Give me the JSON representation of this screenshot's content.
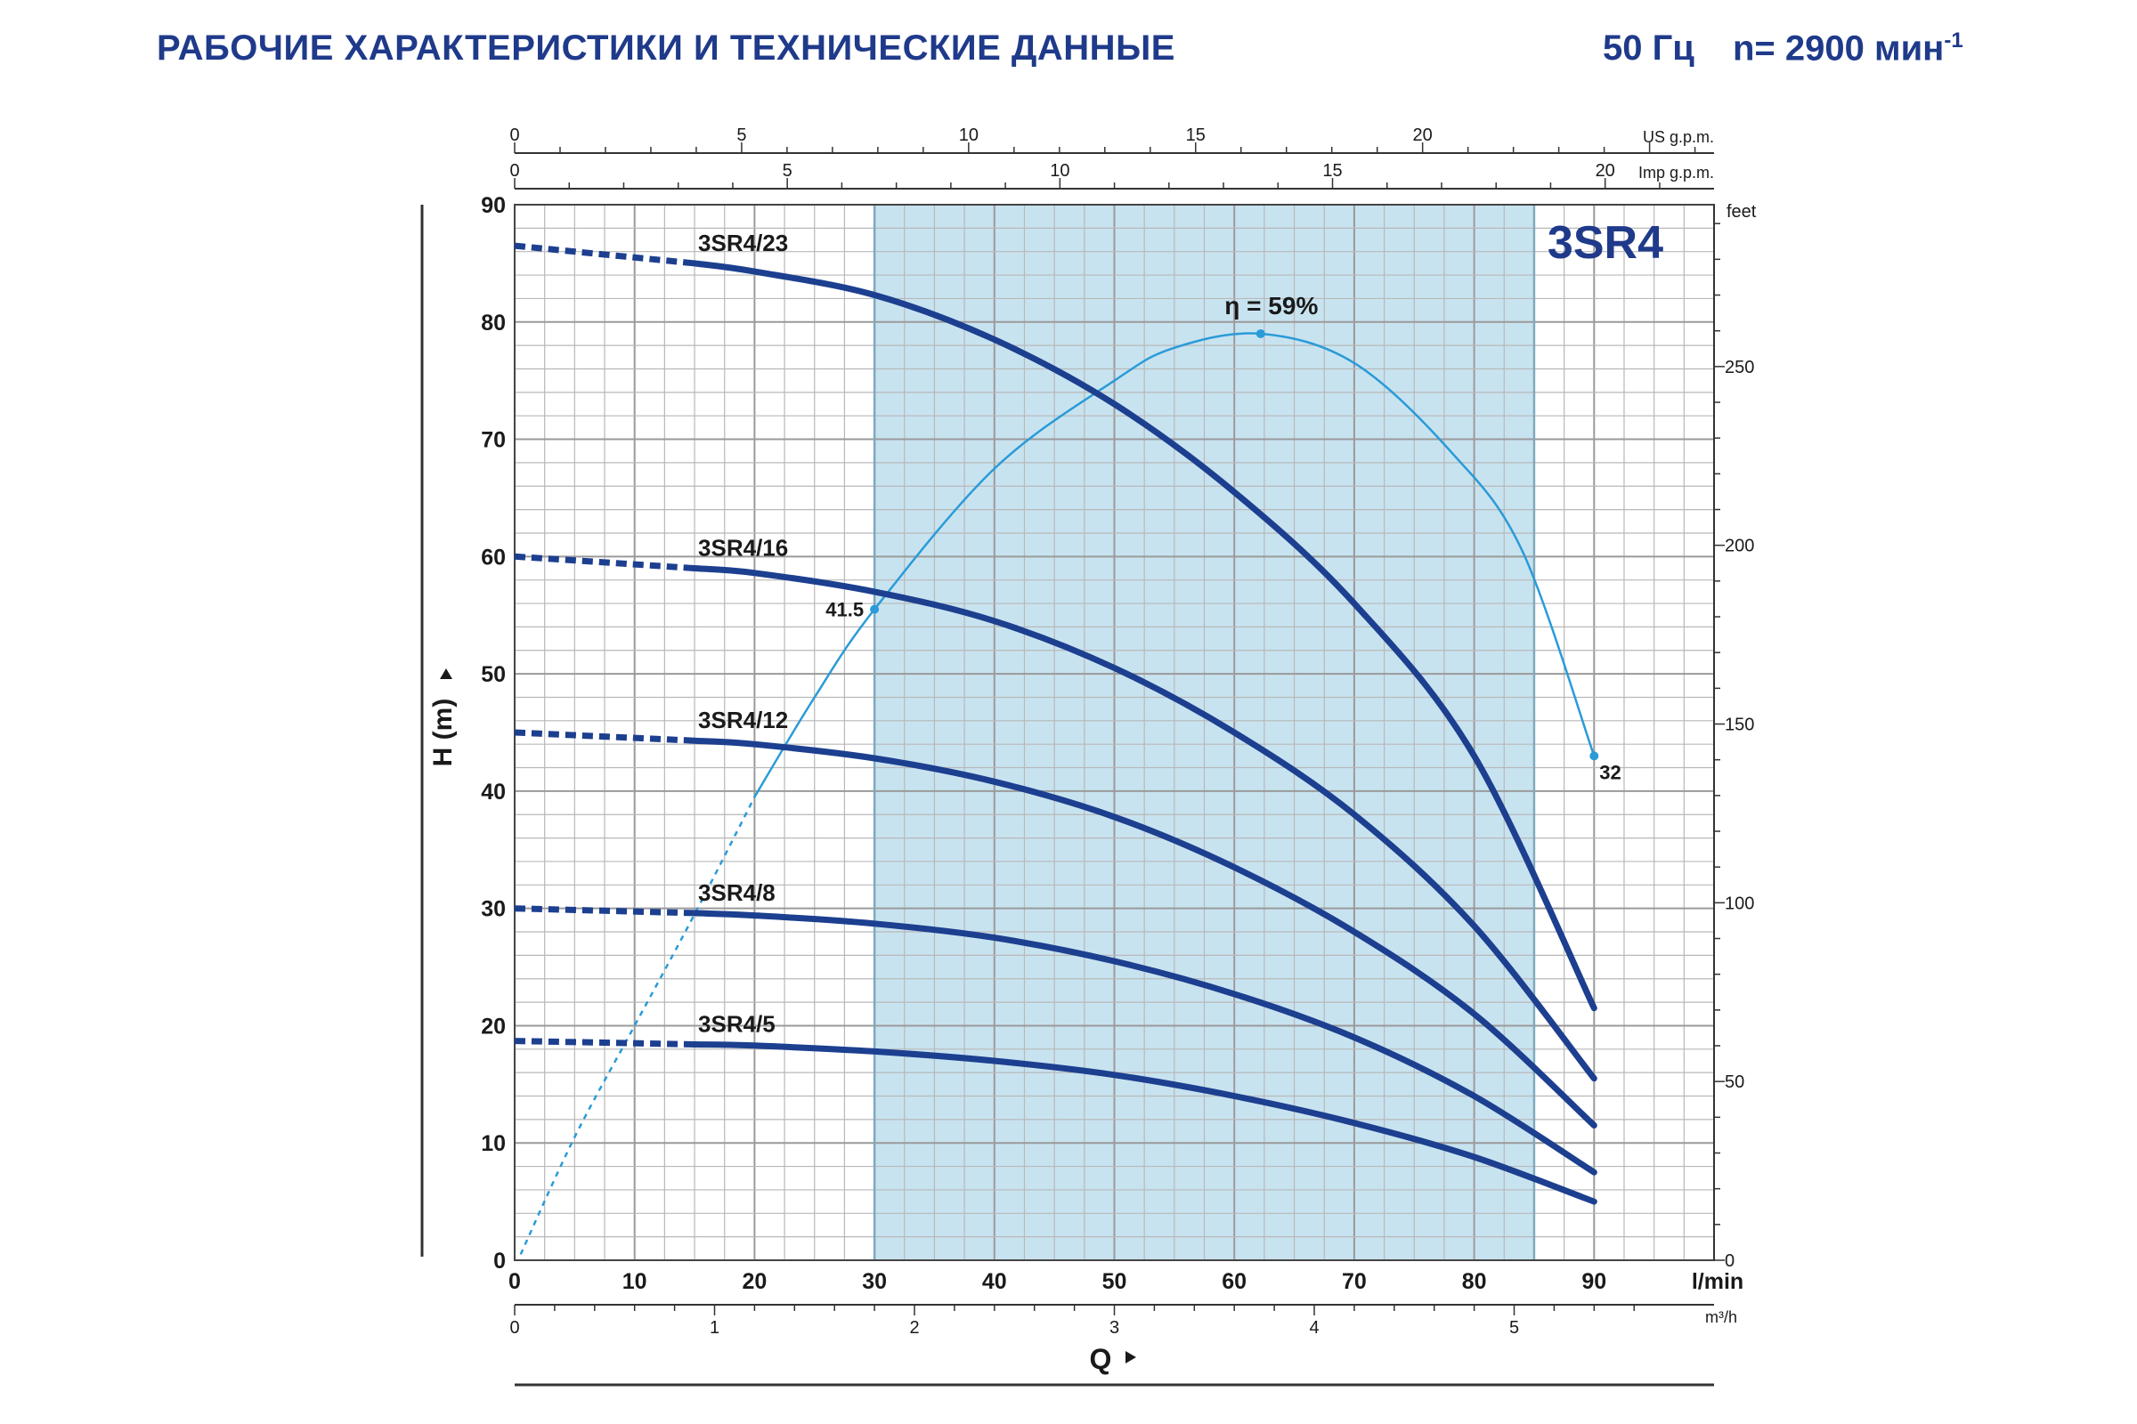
{
  "header": {
    "title": "РАБОЧИЕ ХАРАКТЕРИСТИКИ И ТЕХНИЧЕСКИЕ ДАННЫЕ",
    "frequency": "50 Гц",
    "speed": "n= 2900 мин",
    "speed_exp": "-1"
  },
  "colors": {
    "curve": "#1c3f8f",
    "efficiency": "#2a9bd8",
    "band": "#c8e3f0",
    "grid": "#b8b8b8",
    "brand": "#1f3a8a"
  },
  "chart_data": {
    "type": "line",
    "model": "3SR4",
    "xlabel": "Q",
    "ylabel": "H  (m)",
    "x_unit": "l/min",
    "xlim": [
      0,
      100
    ],
    "ylim": [
      0,
      90
    ],
    "x_ticks": [
      0,
      10,
      20,
      30,
      40,
      50,
      60,
      70,
      80,
      90
    ],
    "y_ticks": [
      0,
      10,
      20,
      30,
      40,
      50,
      60,
      70,
      80,
      90
    ],
    "top_axes": [
      {
        "unit": "US g.p.m.",
        "ticks": [
          0,
          5,
          10,
          15,
          20
        ],
        "lpm_per_unit": 3.785
      },
      {
        "unit": "Imp g.p.m.",
        "ticks": [
          0,
          5,
          10,
          15,
          20
        ],
        "lpm_per_unit": 4.546
      }
    ],
    "bottom_axis": {
      "unit": "m³/h",
      "ticks": [
        0,
        1,
        2,
        3,
        4,
        5
      ],
      "lpm_per_unit": 16.667
    },
    "right_axis": {
      "unit": "feet",
      "ticks": [
        0,
        50,
        100,
        150,
        200,
        250
      ],
      "m_per_unit": 0.3048
    },
    "operating_range": [
      30,
      85
    ],
    "series": [
      {
        "name": "3SR4/23",
        "dashed": [
          [
            0,
            86.5
          ],
          [
            15,
            85.0
          ]
        ],
        "solid": [
          [
            15,
            85.0
          ],
          [
            20,
            84.3
          ],
          [
            30,
            82.3
          ],
          [
            40,
            78.5
          ],
          [
            50,
            73.0
          ],
          [
            60,
            65.5
          ],
          [
            70,
            56.0
          ],
          [
            80,
            43.0
          ],
          [
            90,
            21.5
          ]
        ]
      },
      {
        "name": "3SR4/16",
        "dashed": [
          [
            0,
            60.0
          ],
          [
            15,
            59.0
          ]
        ],
        "solid": [
          [
            15,
            59.0
          ],
          [
            20,
            58.6
          ],
          [
            30,
            57.0
          ],
          [
            40,
            54.5
          ],
          [
            50,
            50.5
          ],
          [
            60,
            45.0
          ],
          [
            70,
            38.0
          ],
          [
            80,
            28.5
          ],
          [
            90,
            15.5
          ]
        ]
      },
      {
        "name": "3SR4/12",
        "dashed": [
          [
            0,
            45.0
          ],
          [
            15,
            44.3
          ]
        ],
        "solid": [
          [
            15,
            44.3
          ],
          [
            20,
            44.0
          ],
          [
            30,
            42.8
          ],
          [
            40,
            40.8
          ],
          [
            50,
            37.8
          ],
          [
            60,
            33.5
          ],
          [
            70,
            28.0
          ],
          [
            80,
            21.0
          ],
          [
            90,
            11.5
          ]
        ]
      },
      {
        "name": "3SR4/8",
        "dashed": [
          [
            0,
            30.0
          ],
          [
            15,
            29.6
          ]
        ],
        "solid": [
          [
            15,
            29.6
          ],
          [
            20,
            29.4
          ],
          [
            30,
            28.7
          ],
          [
            40,
            27.5
          ],
          [
            50,
            25.5
          ],
          [
            60,
            22.7
          ],
          [
            70,
            19.0
          ],
          [
            80,
            14.0
          ],
          [
            90,
            7.5
          ]
        ]
      },
      {
        "name": "3SR4/5",
        "dashed": [
          [
            0,
            18.7
          ],
          [
            15,
            18.4
          ]
        ],
        "solid": [
          [
            15,
            18.4
          ],
          [
            20,
            18.3
          ],
          [
            30,
            17.8
          ],
          [
            40,
            17.0
          ],
          [
            50,
            15.8
          ],
          [
            60,
            14.0
          ],
          [
            70,
            11.7
          ],
          [
            80,
            8.8
          ],
          [
            90,
            5.0
          ]
        ]
      }
    ],
    "efficiency": {
      "label": "η = 59%",
      "peak": [
        62.2,
        79.0
      ],
      "start_label": "41.5",
      "start": [
        30,
        55.5
      ],
      "end_label": "32",
      "end": [
        90,
        43.0
      ],
      "dashed": [
        [
          0.5,
          0.5
        ],
        [
          5,
          10.5
        ],
        [
          10,
          20.0
        ],
        [
          15,
          29.5
        ],
        [
          20,
          39.5
        ]
      ],
      "solid": [
        [
          20,
          39.5
        ],
        [
          25,
          48.0
        ],
        [
          30,
          55.5
        ],
        [
          40,
          67.5
        ],
        [
          50,
          75.0
        ],
        [
          55,
          77.8
        ],
        [
          62.2,
          79.0
        ],
        [
          70,
          76.5
        ],
        [
          78,
          69.0
        ],
        [
          84,
          60.5
        ],
        [
          90,
          43.0
        ]
      ]
    }
  }
}
